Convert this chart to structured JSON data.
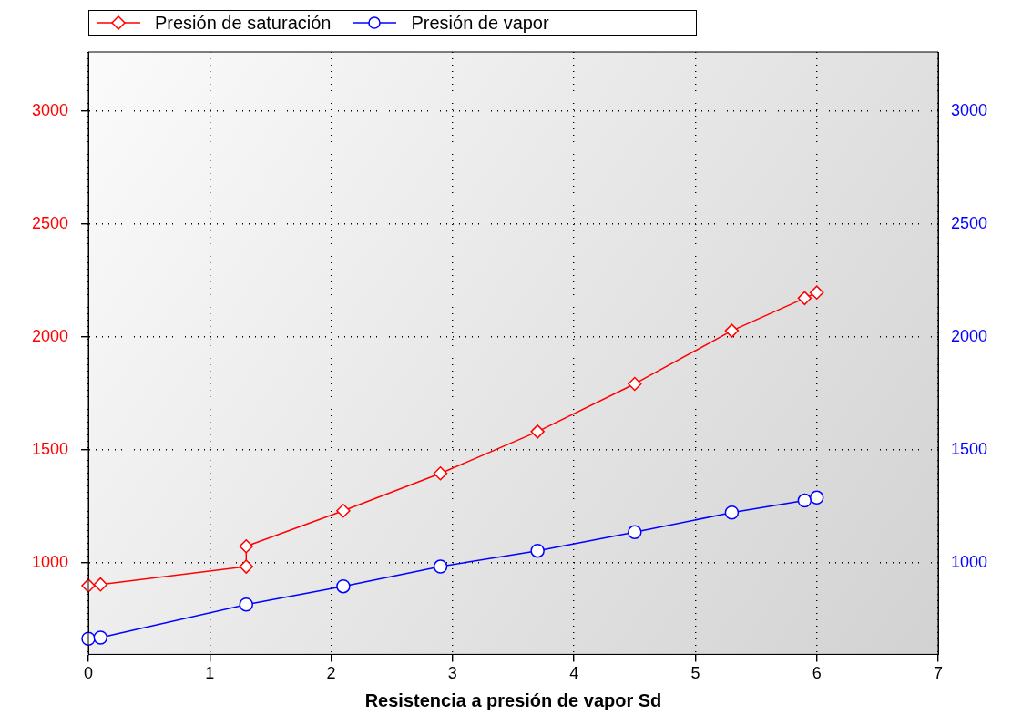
{
  "chart_data": {
    "type": "line",
    "xlabel": "Resistencia a presión de vapor Sd",
    "x": [
      0,
      0.1,
      1.3,
      1.3,
      2.1,
      2.9,
      3.7,
      4.5,
      5.3,
      5.9,
      6.0
    ],
    "xlim": [
      0,
      7
    ],
    "xticks": [
      0,
      1,
      2,
      3,
      4,
      5,
      6,
      7
    ],
    "ylim": [
      596,
      3260
    ],
    "yticks": [
      1000,
      1500,
      2000,
      2500,
      3000
    ],
    "y2lim": [
      596,
      3260
    ],
    "y2ticks": [
      1000,
      1500,
      2000,
      2500,
      3000
    ],
    "grid": true,
    "legend": "top left",
    "line_style": "solid",
    "series": [
      {
        "name": "Presión de saturación",
        "color": "#ff0000",
        "marker": "diamond",
        "values": [
          900,
          905,
          984,
          1074,
          1231,
          1396,
          1581,
          1792,
          2027,
          2171,
          2196
        ]
      },
      {
        "name": "Presión de vapor",
        "color": "#0000ff",
        "marker": "circle",
        "axis": "y2",
        "x": [
          0,
          0.1,
          1.3,
          2.1,
          2.9,
          3.7,
          4.5,
          5.3,
          5.9,
          6.0
        ],
        "values": [
          665,
          670,
          816,
          897,
          984,
          1054,
          1136,
          1223,
          1276,
          1289
        ]
      }
    ]
  }
}
